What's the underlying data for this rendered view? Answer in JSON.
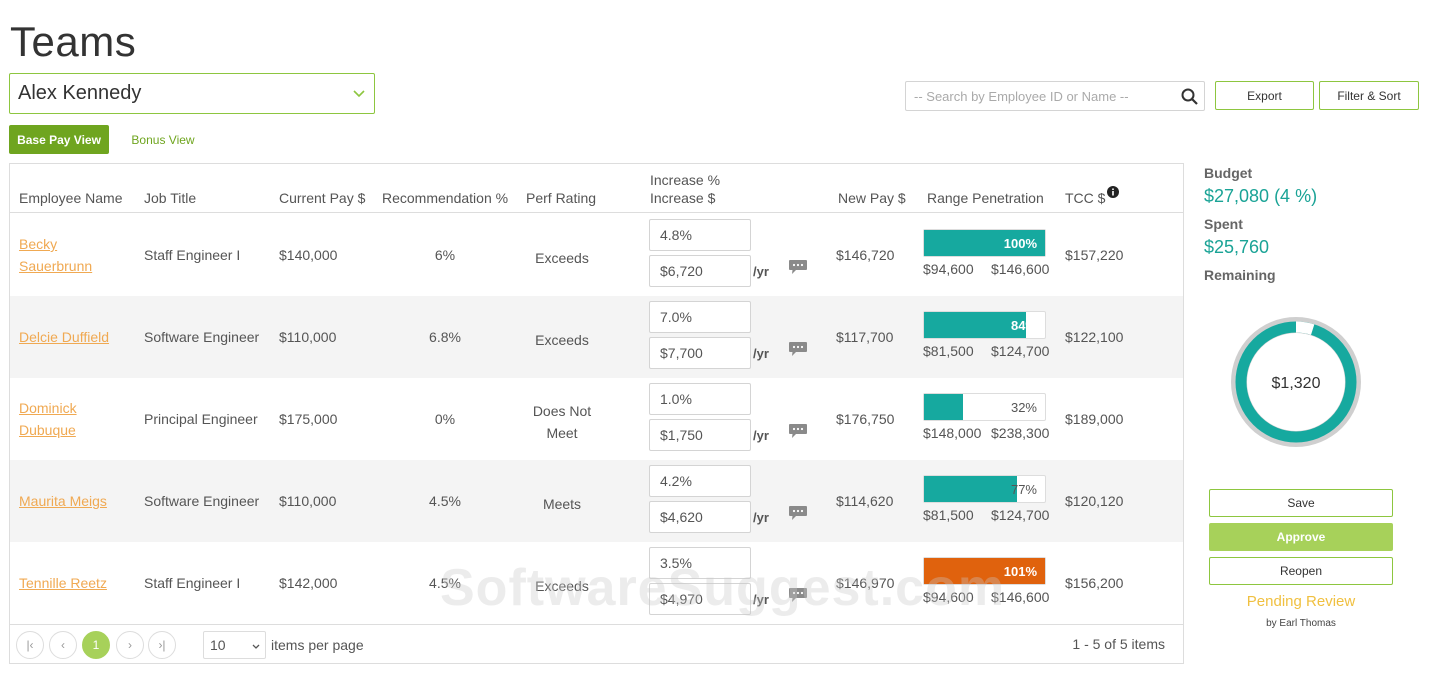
{
  "page": {
    "title": "Teams"
  },
  "team_select": {
    "value": "Alex Kennedy"
  },
  "views": {
    "base_pay": "Base Pay View",
    "bonus": "Bonus View"
  },
  "search": {
    "placeholder": "-- Search by Employee ID or Name --"
  },
  "toolbar": {
    "export_label": "Export",
    "filter_label": "Filter & Sort"
  },
  "columns": {
    "name": "Employee Name",
    "job": "Job Title",
    "current_pay": "Current Pay $",
    "recommendation": "Recommendation %",
    "perf": "Perf Rating",
    "increase_pct": "Increase %",
    "increase_amt": "Increase $",
    "new_pay": "New Pay $",
    "range": "Range Penetration",
    "tcc": "TCC $"
  },
  "per_year": "/yr",
  "rows": [
    {
      "name_line1": "Becky",
      "name_line2": "Sauerbrunn",
      "job": "Staff Engineer I",
      "current_pay": "$140,000",
      "recommendation": "6%",
      "perf_line1": "Exceeds",
      "perf_line2": "",
      "increase_pct": "4.8%",
      "increase_amt": "$6,720",
      "new_pay": "$146,720",
      "range_pct_label": "100%",
      "range_fill": 1.0,
      "range_color": "#16a99f",
      "range_label_color": "#ffffff",
      "range_min": "$94,600",
      "range_max": "$146,600",
      "tcc": "$157,220"
    },
    {
      "name_line1": "Delcie Duffield",
      "name_line2": "",
      "job": "Software Engineer",
      "current_pay": "$110,000",
      "recommendation": "6.8%",
      "perf_line1": "Exceeds",
      "perf_line2": "",
      "increase_pct": "7.0%",
      "increase_amt": "$7,700",
      "new_pay": "$117,700",
      "range_pct_label": "84%",
      "range_fill": 0.84,
      "range_color": "#16a99f",
      "range_label_color": "#ffffff",
      "range_min": "$81,500",
      "range_max": "$124,700",
      "tcc": "$122,100"
    },
    {
      "name_line1": "Dominick",
      "name_line2": "Dubuque",
      "job": "Principal Engineer",
      "current_pay": "$175,000",
      "recommendation": "0%",
      "perf_line1": "Does Not",
      "perf_line2": "Meet",
      "increase_pct": "1.0%",
      "increase_amt": "$1,750",
      "new_pay": "$176,750",
      "range_pct_label": "32%",
      "range_fill": 0.32,
      "range_color": "#16a99f",
      "range_label_color": "#555555",
      "range_min": "$148,000",
      "range_max": "$238,300",
      "tcc": "$189,000"
    },
    {
      "name_line1": "Maurita Meigs",
      "name_line2": "",
      "job": "Software Engineer",
      "current_pay": "$110,000",
      "recommendation": "4.5%",
      "perf_line1": "Meets",
      "perf_line2": "",
      "increase_pct": "4.2%",
      "increase_amt": "$4,620",
      "new_pay": "$114,620",
      "range_pct_label": "77%",
      "range_fill": 0.77,
      "range_color": "#16a99f",
      "range_label_color": "#555555",
      "range_min": "$81,500",
      "range_max": "$124,700",
      "tcc": "$120,120"
    },
    {
      "name_line1": "Tennille Reetz",
      "name_line2": "",
      "job": "Staff Engineer I",
      "current_pay": "$142,000",
      "recommendation": "4.5%",
      "perf_line1": "Exceeds",
      "perf_line2": "",
      "increase_pct": "3.5%",
      "increase_amt": "$4,970",
      "new_pay": "$146,970",
      "range_pct_label": "101%",
      "range_fill": 1.0,
      "range_color": "#e0620d",
      "range_label_color": "#ffffff",
      "range_min": "$94,600",
      "range_max": "$146,600",
      "tcc": "$156,200"
    }
  ],
  "pager": {
    "current_page": "1",
    "page_size": "10",
    "items_per_page_label": "items per page",
    "info": "1 - 5 of 5 items"
  },
  "budget": {
    "budget_label": "Budget",
    "budget_value": "$27,080  (4 %)",
    "spent_label": "Spent",
    "spent_value": "$25,760",
    "remaining_label": "Remaining",
    "remaining_value": "$1,320",
    "remaining_fraction": 0.049
  },
  "actions": {
    "save": "Save",
    "approve": "Approve",
    "reopen": "Reopen"
  },
  "status": {
    "label": "Pending Review",
    "by": "by Earl Thomas"
  },
  "watermark": "SoftwareSuggest.com",
  "colors": {
    "accent_green": "#8dc63f",
    "teal": "#16a99f",
    "orange": "#e0620d",
    "link_orange": "#f0a952"
  },
  "icons": {
    "search": "search-icon",
    "chevron": "chevron-down-icon",
    "comment": "comment-icon",
    "info": "info-icon"
  }
}
